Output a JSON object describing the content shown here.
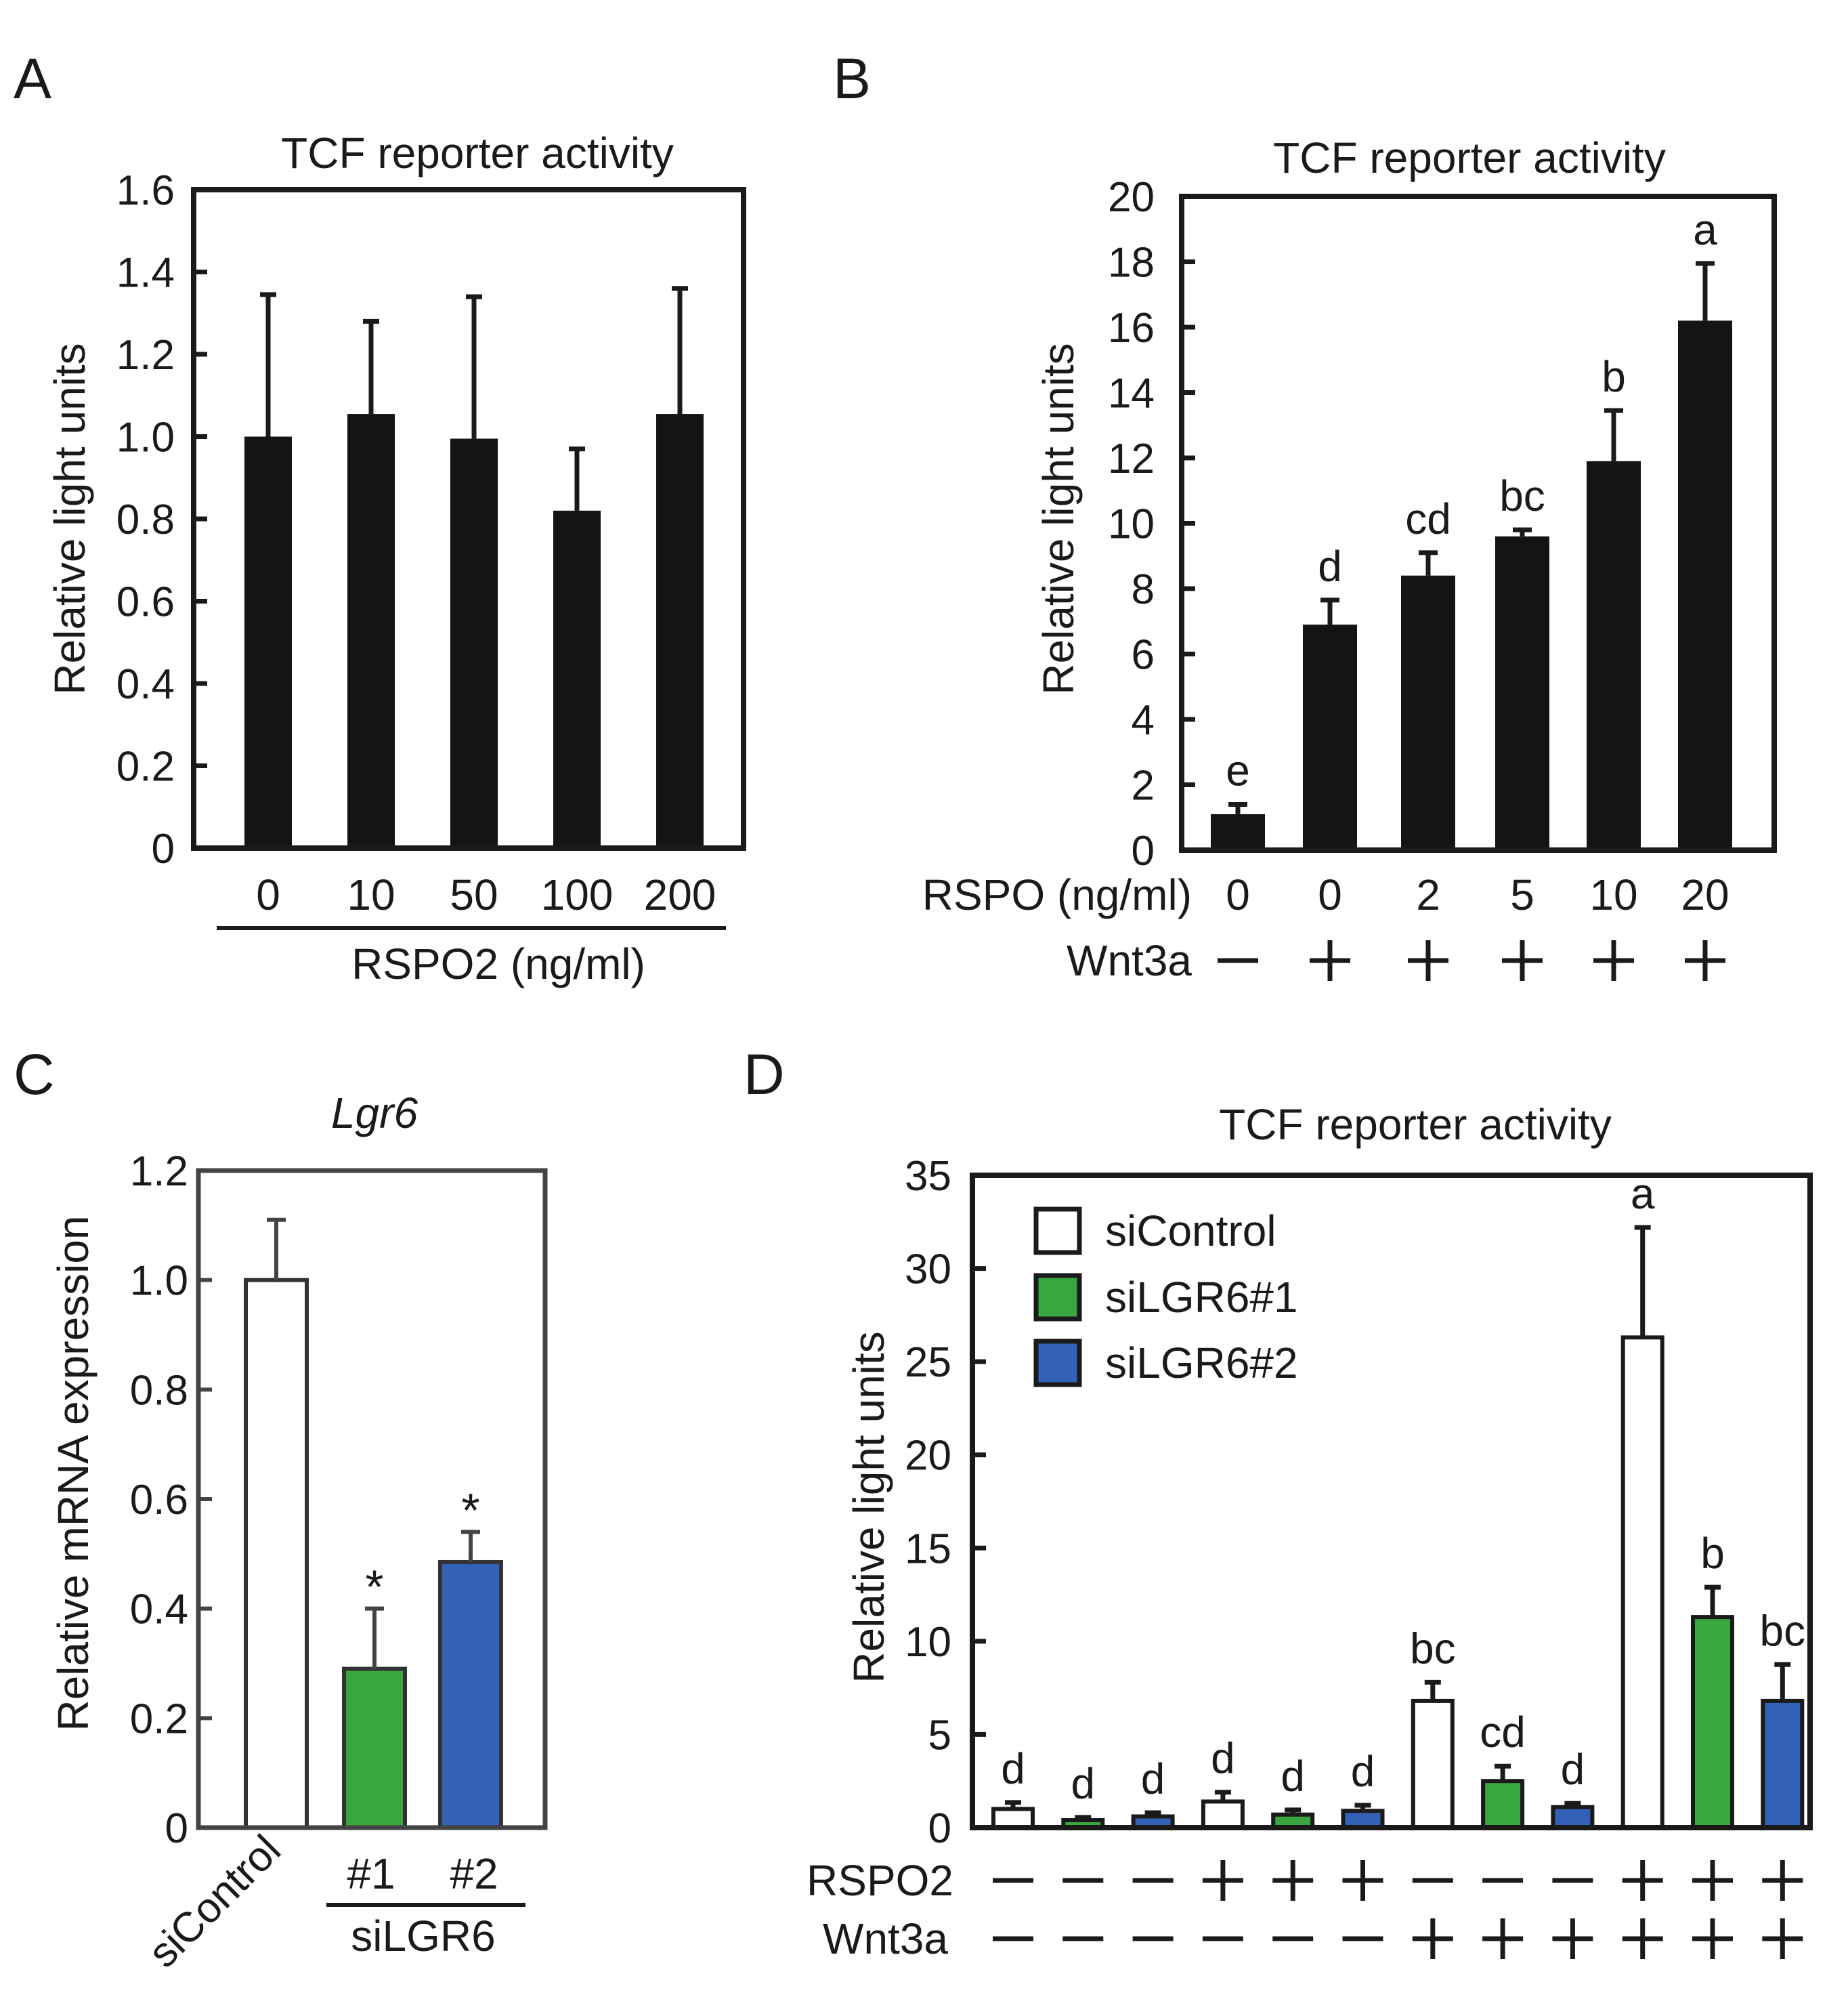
{
  "panels": {
    "A": {
      "letter": "A"
    },
    "B": {
      "letter": "B"
    },
    "C": {
      "letter": "C"
    },
    "D": {
      "letter": "D"
    }
  },
  "colors": {
    "black": "#141414",
    "white": "#ffffff",
    "green": "#3aa63f",
    "blue": "#3361b8",
    "axis": "#1a1a1a",
    "axis_c": "#444444"
  },
  "chart_data": [
    {
      "id": "A",
      "type": "bar",
      "title": "TCF reporter activity",
      "ylabel": "Relative light units",
      "xlabel": "RSPO2 (ng/ml)",
      "ylim": [
        0,
        1.6
      ],
      "yticks": [
        "0",
        "0.2",
        "0.4",
        "0.6",
        "0.8",
        "1.0",
        "1.2",
        "1.4",
        "1.6"
      ],
      "categories": [
        "0",
        "10",
        "50",
        "100",
        "200"
      ],
      "values": [
        1.0,
        1.055,
        0.995,
        0.82,
        1.055
      ],
      "errors": [
        0.345,
        0.225,
        0.345,
        0.15,
        0.305
      ],
      "bar_color": "#141414"
    },
    {
      "id": "B",
      "type": "bar",
      "title": "TCF reporter activity",
      "ylabel": "Relative light units",
      "ylim": [
        0,
        20
      ],
      "yticks": [
        "0",
        "2",
        "4",
        "6",
        "8",
        "10",
        "12",
        "14",
        "16",
        "18",
        "20"
      ],
      "row1_label": "RSPO (ng/ml)",
      "row2_label": "Wnt3a",
      "categories": [
        "0",
        "0",
        "2",
        "5",
        "10",
        "20"
      ],
      "wnt3a": [
        "−",
        "+",
        "+",
        "+",
        "+",
        "+"
      ],
      "values": [
        1.1,
        6.9,
        8.4,
        9.6,
        11.9,
        16.2
      ],
      "errors": [
        0.3,
        0.75,
        0.7,
        0.2,
        1.55,
        1.75
      ],
      "letters": [
        "e",
        "d",
        "cd",
        "bc",
        "b",
        "a"
      ],
      "bar_color": "#141414"
    },
    {
      "id": "C",
      "type": "bar",
      "title": "Lgr6",
      "ylabel": "Relative mRNA expression",
      "ylim": [
        0,
        1.2
      ],
      "yticks": [
        "0",
        "0.2",
        "0.4",
        "0.6",
        "0.8",
        "1.0",
        "1.2"
      ],
      "categories": [
        "siControl",
        "#1",
        "#2"
      ],
      "group_label": "siLGR6",
      "values": [
        1.0,
        0.29,
        0.485
      ],
      "errors": [
        0.11,
        0.11,
        0.055
      ],
      "significance": [
        "",
        "*",
        "*"
      ],
      "colors": [
        "#ffffff",
        "#3aa63f",
        "#3361b8"
      ]
    },
    {
      "id": "D",
      "type": "bar",
      "title": "TCF reporter activity",
      "ylabel": "Relative light units",
      "ylim": [
        0,
        35
      ],
      "yticks": [
        "0",
        "5",
        "10",
        "15",
        "20",
        "25",
        "30",
        "35"
      ],
      "series_names": [
        "siControl",
        "siLGR6#1",
        "siLGR6#2"
      ],
      "legend": "top-left",
      "row1_label": "RSPO2",
      "row2_label": "Wnt3a",
      "rspo2": [
        "−",
        "−",
        "−",
        "+",
        "+",
        "+",
        "−",
        "−",
        "−",
        "+",
        "+",
        "+"
      ],
      "wnt3a": [
        "−",
        "−",
        "−",
        "−",
        "−",
        "−",
        "+",
        "+",
        "+",
        "+",
        "+",
        "+"
      ],
      "series_index": [
        0,
        1,
        2,
        0,
        1,
        2,
        0,
        1,
        2,
        0,
        1,
        2
      ],
      "values": [
        1.0,
        0.4,
        0.6,
        1.4,
        0.7,
        0.9,
        6.8,
        2.5,
        1.1,
        26.3,
        11.3,
        6.8
      ],
      "errors": [
        0.35,
        0.15,
        0.2,
        0.5,
        0.25,
        0.3,
        1.0,
        0.8,
        0.2,
        5.9,
        1.6,
        1.95
      ],
      "letters": [
        "d",
        "d",
        "d",
        "d",
        "d",
        "d",
        "bc",
        "cd",
        "d",
        "a",
        "b",
        "bc"
      ],
      "colors": [
        "#ffffff",
        "#3aa63f",
        "#3361b8"
      ]
    }
  ]
}
